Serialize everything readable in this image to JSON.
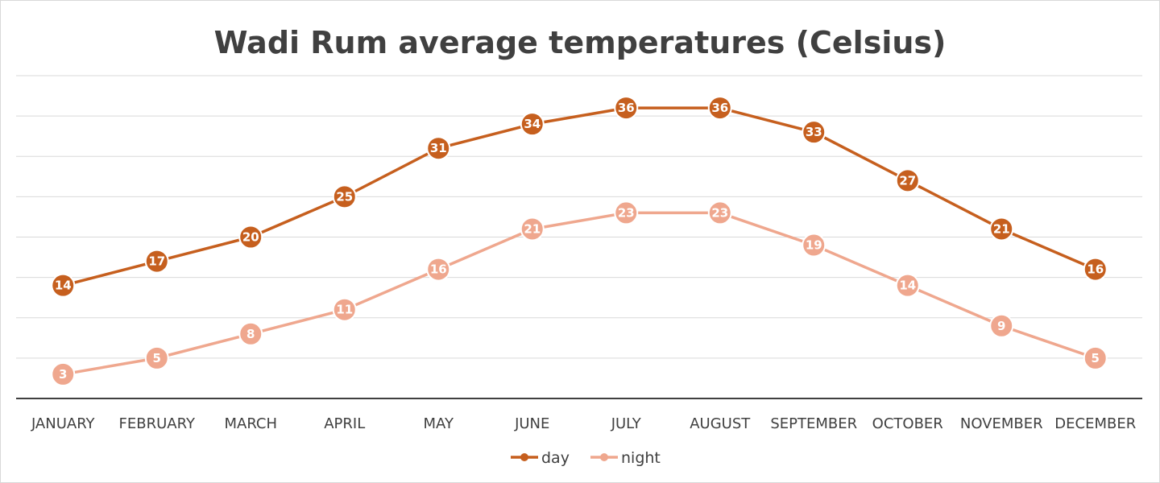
{
  "chart_data": {
    "type": "line",
    "title": "Wadi Rum average temperatures (Celsius)",
    "categories": [
      "JANUARY",
      "FEBRUARY",
      "MARCH",
      "APRIL",
      "MAY",
      "JUNE",
      "JULY",
      "AUGUST",
      "SEPTEMBER",
      "OCTOBER",
      "NOVEMBER",
      "DECEMBER"
    ],
    "series": [
      {
        "name": "day",
        "color": "#C65F1E",
        "values": [
          14,
          17,
          20,
          25,
          31,
          34,
          36,
          36,
          33,
          27,
          21,
          16
        ]
      },
      {
        "name": "night",
        "color": "#EFA78E",
        "values": [
          3,
          5,
          8,
          11,
          16,
          21,
          23,
          23,
          19,
          14,
          9,
          5
        ]
      }
    ],
    "ylim": [
      0,
      40
    ],
    "grid": true,
    "legend": "bottom",
    "data_labels": true
  }
}
